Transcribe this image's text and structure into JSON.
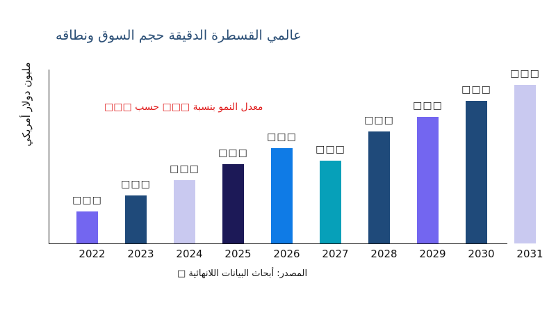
{
  "chart_data": {
    "type": "bar",
    "title": "عالمي القسطرة الدقيقة حجم السوق ونطاقه",
    "ylabel": "مليون دولار أمريكي",
    "xlabel": "",
    "annotation": "معدل النمو بنسبة □□□ حسب □□□",
    "source": "المصدر: أبحاث البيانات اللانهائية □",
    "categories": [
      "2022",
      "2023",
      "2024",
      "2025",
      "2026",
      "2027",
      "2028",
      "2029",
      "2030",
      "2031"
    ],
    "values": [
      46,
      69,
      91,
      114,
      137,
      119,
      161,
      182,
      205,
      228
    ],
    "data_labels": [
      "□□□",
      "□□□",
      "□□□",
      "□□□",
      "□□□",
      "□□□",
      "□□□",
      "□□□",
      "□□□",
      "□□□"
    ],
    "colors": [
      "#7366f0",
      "#1f4a7a",
      "#c9c9f0",
      "#1c1957",
      "#0f7be6",
      "#06a0b9",
      "#1f4a7a",
      "#7366f0",
      "#1f4a7a",
      "#c9c9f0"
    ],
    "grid": false,
    "legend": "none"
  }
}
